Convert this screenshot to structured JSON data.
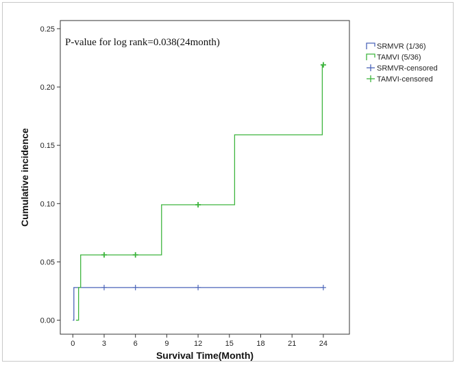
{
  "chart_data": {
    "type": "line",
    "subtype": "step",
    "annotation": "P-value for log rank=0.038(24month)",
    "xlabel": "Survival Time(Month)",
    "ylabel": "Cumulative incidence",
    "xlim": [
      -1.2,
      26.5
    ],
    "ylim": [
      -0.012,
      0.257
    ],
    "x_ticks": [
      0,
      3,
      6,
      9,
      12,
      15,
      18,
      21,
      24
    ],
    "y_ticks": [
      0.0,
      0.05,
      0.1,
      0.15,
      0.2,
      0.25
    ],
    "y_tick_labels": [
      "0.00",
      "0.05",
      "0.10",
      "0.15",
      "0.20",
      "0.25"
    ],
    "grid": false,
    "legend_position": "right",
    "series": [
      {
        "name": "SRMVR (1/36)",
        "color": "#4a63b8",
        "steps": [
          [
            0,
            0.0
          ],
          [
            0.1,
            0.028
          ],
          [
            24,
            0.028
          ]
        ],
        "censored_name": "SRMVR-censored",
        "censored": [
          [
            3,
            0.028
          ],
          [
            6,
            0.028
          ],
          [
            12,
            0.028
          ],
          [
            24,
            0.028
          ]
        ]
      },
      {
        "name": "TAMVI (5/36)",
        "color": "#3cb43c",
        "steps": [
          [
            0.3,
            0.0
          ],
          [
            0.55,
            0.028
          ],
          [
            0.75,
            0.056
          ],
          [
            8.5,
            0.099
          ],
          [
            15.5,
            0.159
          ],
          [
            23.9,
            0.219
          ],
          [
            24,
            0.219
          ]
        ],
        "censored_name": "TAMVI-censored",
        "censored": [
          [
            3,
            0.056
          ],
          [
            6,
            0.056
          ],
          [
            12,
            0.099
          ],
          [
            24,
            0.219
          ]
        ]
      }
    ]
  }
}
